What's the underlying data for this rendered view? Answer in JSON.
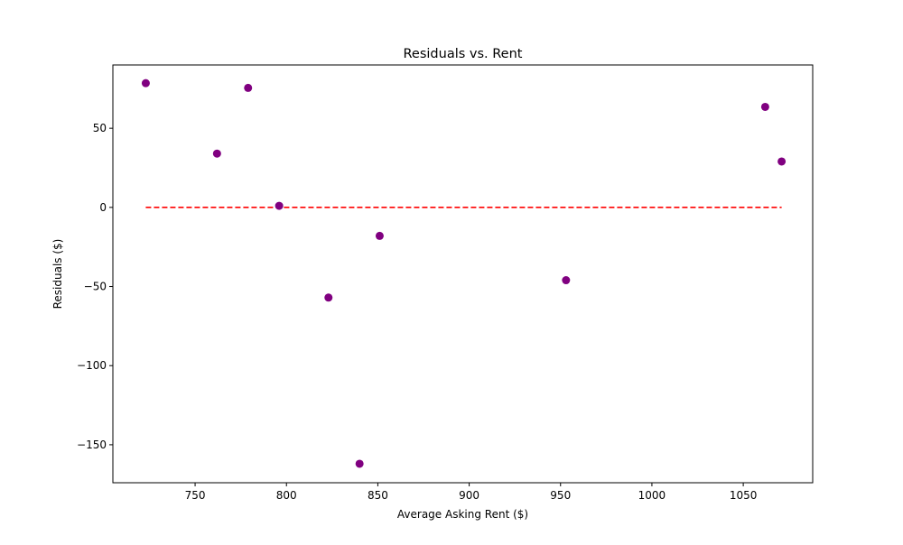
{
  "chart_data": {
    "type": "scatter",
    "title": "Residuals vs. Rent",
    "xlabel": "Average Asking Rent ($)",
    "ylabel": "Residuals ($)",
    "xlim": [
      705,
      1088
    ],
    "ylim": [
      -174,
      90
    ],
    "xticks": [
      750,
      800,
      850,
      900,
      950,
      1000,
      1050
    ],
    "yticks": [
      -150,
      -100,
      -50,
      0,
      50
    ],
    "grid": false,
    "legend": null,
    "series": [
      {
        "color": "#800080",
        "marker": "circle",
        "points": [
          {
            "x": 723,
            "y": 78.5
          },
          {
            "x": 762,
            "y": 34
          },
          {
            "x": 779,
            "y": 75.5
          },
          {
            "x": 796,
            "y": 1
          },
          {
            "x": 823,
            "y": -57
          },
          {
            "x": 840,
            "y": -162
          },
          {
            "x": 851,
            "y": -18
          },
          {
            "x": 953,
            "y": -46
          },
          {
            "x": 1062,
            "y": 63.5
          },
          {
            "x": 1071,
            "y": 29
          }
        ]
      }
    ],
    "reference_line": {
      "y": 0,
      "x_from": 723,
      "x_to": 1071,
      "color": "#ff0000",
      "style": "dashed"
    }
  }
}
